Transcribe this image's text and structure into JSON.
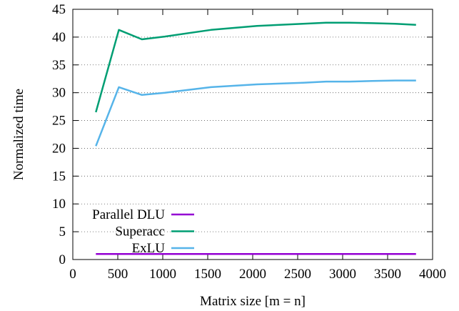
{
  "chart_data": {
    "type": "line",
    "xlabel": "Matrix size [m = n]",
    "ylabel": "Normalized time",
    "xlim": [
      0,
      4000
    ],
    "ylim": [
      0,
      45
    ],
    "xticks": [
      0,
      500,
      1000,
      1500,
      2000,
      2500,
      3000,
      3500,
      4000
    ],
    "yticks": [
      0,
      5,
      10,
      15,
      20,
      25,
      30,
      35,
      40,
      45
    ],
    "grid": "horizontal-dotted",
    "legend_position": "bottom-left",
    "series": [
      {
        "name": "Parallel DLU",
        "color": "#9400d3",
        "x": [
          256,
          512,
          768,
          1024,
          1536,
          2048,
          2560,
          2816,
          3072,
          3328,
          3584,
          3816
        ],
        "y": [
          1,
          1,
          1,
          1,
          1,
          1,
          1,
          1,
          1,
          1,
          1,
          1
        ]
      },
      {
        "name": "Superacc",
        "color": "#009e73",
        "x": [
          256,
          512,
          768,
          1024,
          1536,
          2048,
          2560,
          2816,
          3072,
          3328,
          3584,
          3816
        ],
        "y": [
          26.5,
          41.3,
          39.6,
          40.1,
          41.3,
          42.0,
          42.4,
          42.6,
          42.6,
          42.5,
          42.4,
          42.2
        ]
      },
      {
        "name": "ExLU",
        "color": "#56b4e9",
        "x": [
          256,
          512,
          768,
          1024,
          1536,
          2048,
          2560,
          2816,
          3072,
          3328,
          3584,
          3816
        ],
        "y": [
          20.4,
          31.0,
          29.6,
          30.0,
          31.0,
          31.5,
          31.8,
          32.0,
          32.0,
          32.1,
          32.2,
          32.2
        ]
      }
    ]
  }
}
